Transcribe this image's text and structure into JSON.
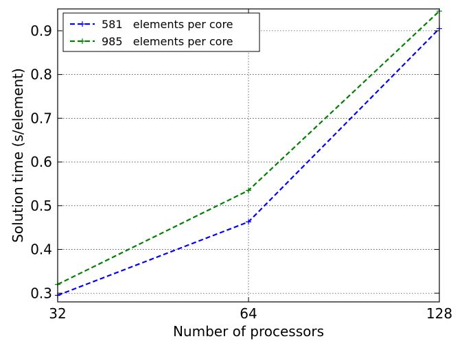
{
  "chart_data": {
    "type": "line",
    "title": "",
    "xlabel": "Number of processors",
    "ylabel": "Solution time (s/element)",
    "xscale": "log2",
    "xlim": [
      32,
      128
    ],
    "ylim": [
      0.28,
      0.95
    ],
    "xticks": [
      32,
      64,
      128
    ],
    "xtick_labels": [
      "32",
      "64",
      "128"
    ],
    "yticks": [
      0.3,
      0.4,
      0.5,
      0.6,
      0.7,
      0.8,
      0.9
    ],
    "ytick_labels": [
      "0.3",
      "0.4",
      "0.5",
      "0.6",
      "0.7",
      "0.8",
      "0.9"
    ],
    "grid": true,
    "legend_position": "top-left",
    "series": [
      {
        "name": "581   elements per core",
        "color": "#0000ff",
        "linestyle": "dashed",
        "marker": "plus",
        "x": [
          32,
          64,
          128
        ],
        "y": [
          0.295,
          0.463,
          0.905
        ]
      },
      {
        "name": "985   elements per core",
        "color": "#007f00",
        "linestyle": "dashed",
        "marker": "plus",
        "x": [
          32,
          64,
          128
        ],
        "y": [
          0.32,
          0.535,
          0.945
        ]
      }
    ]
  }
}
